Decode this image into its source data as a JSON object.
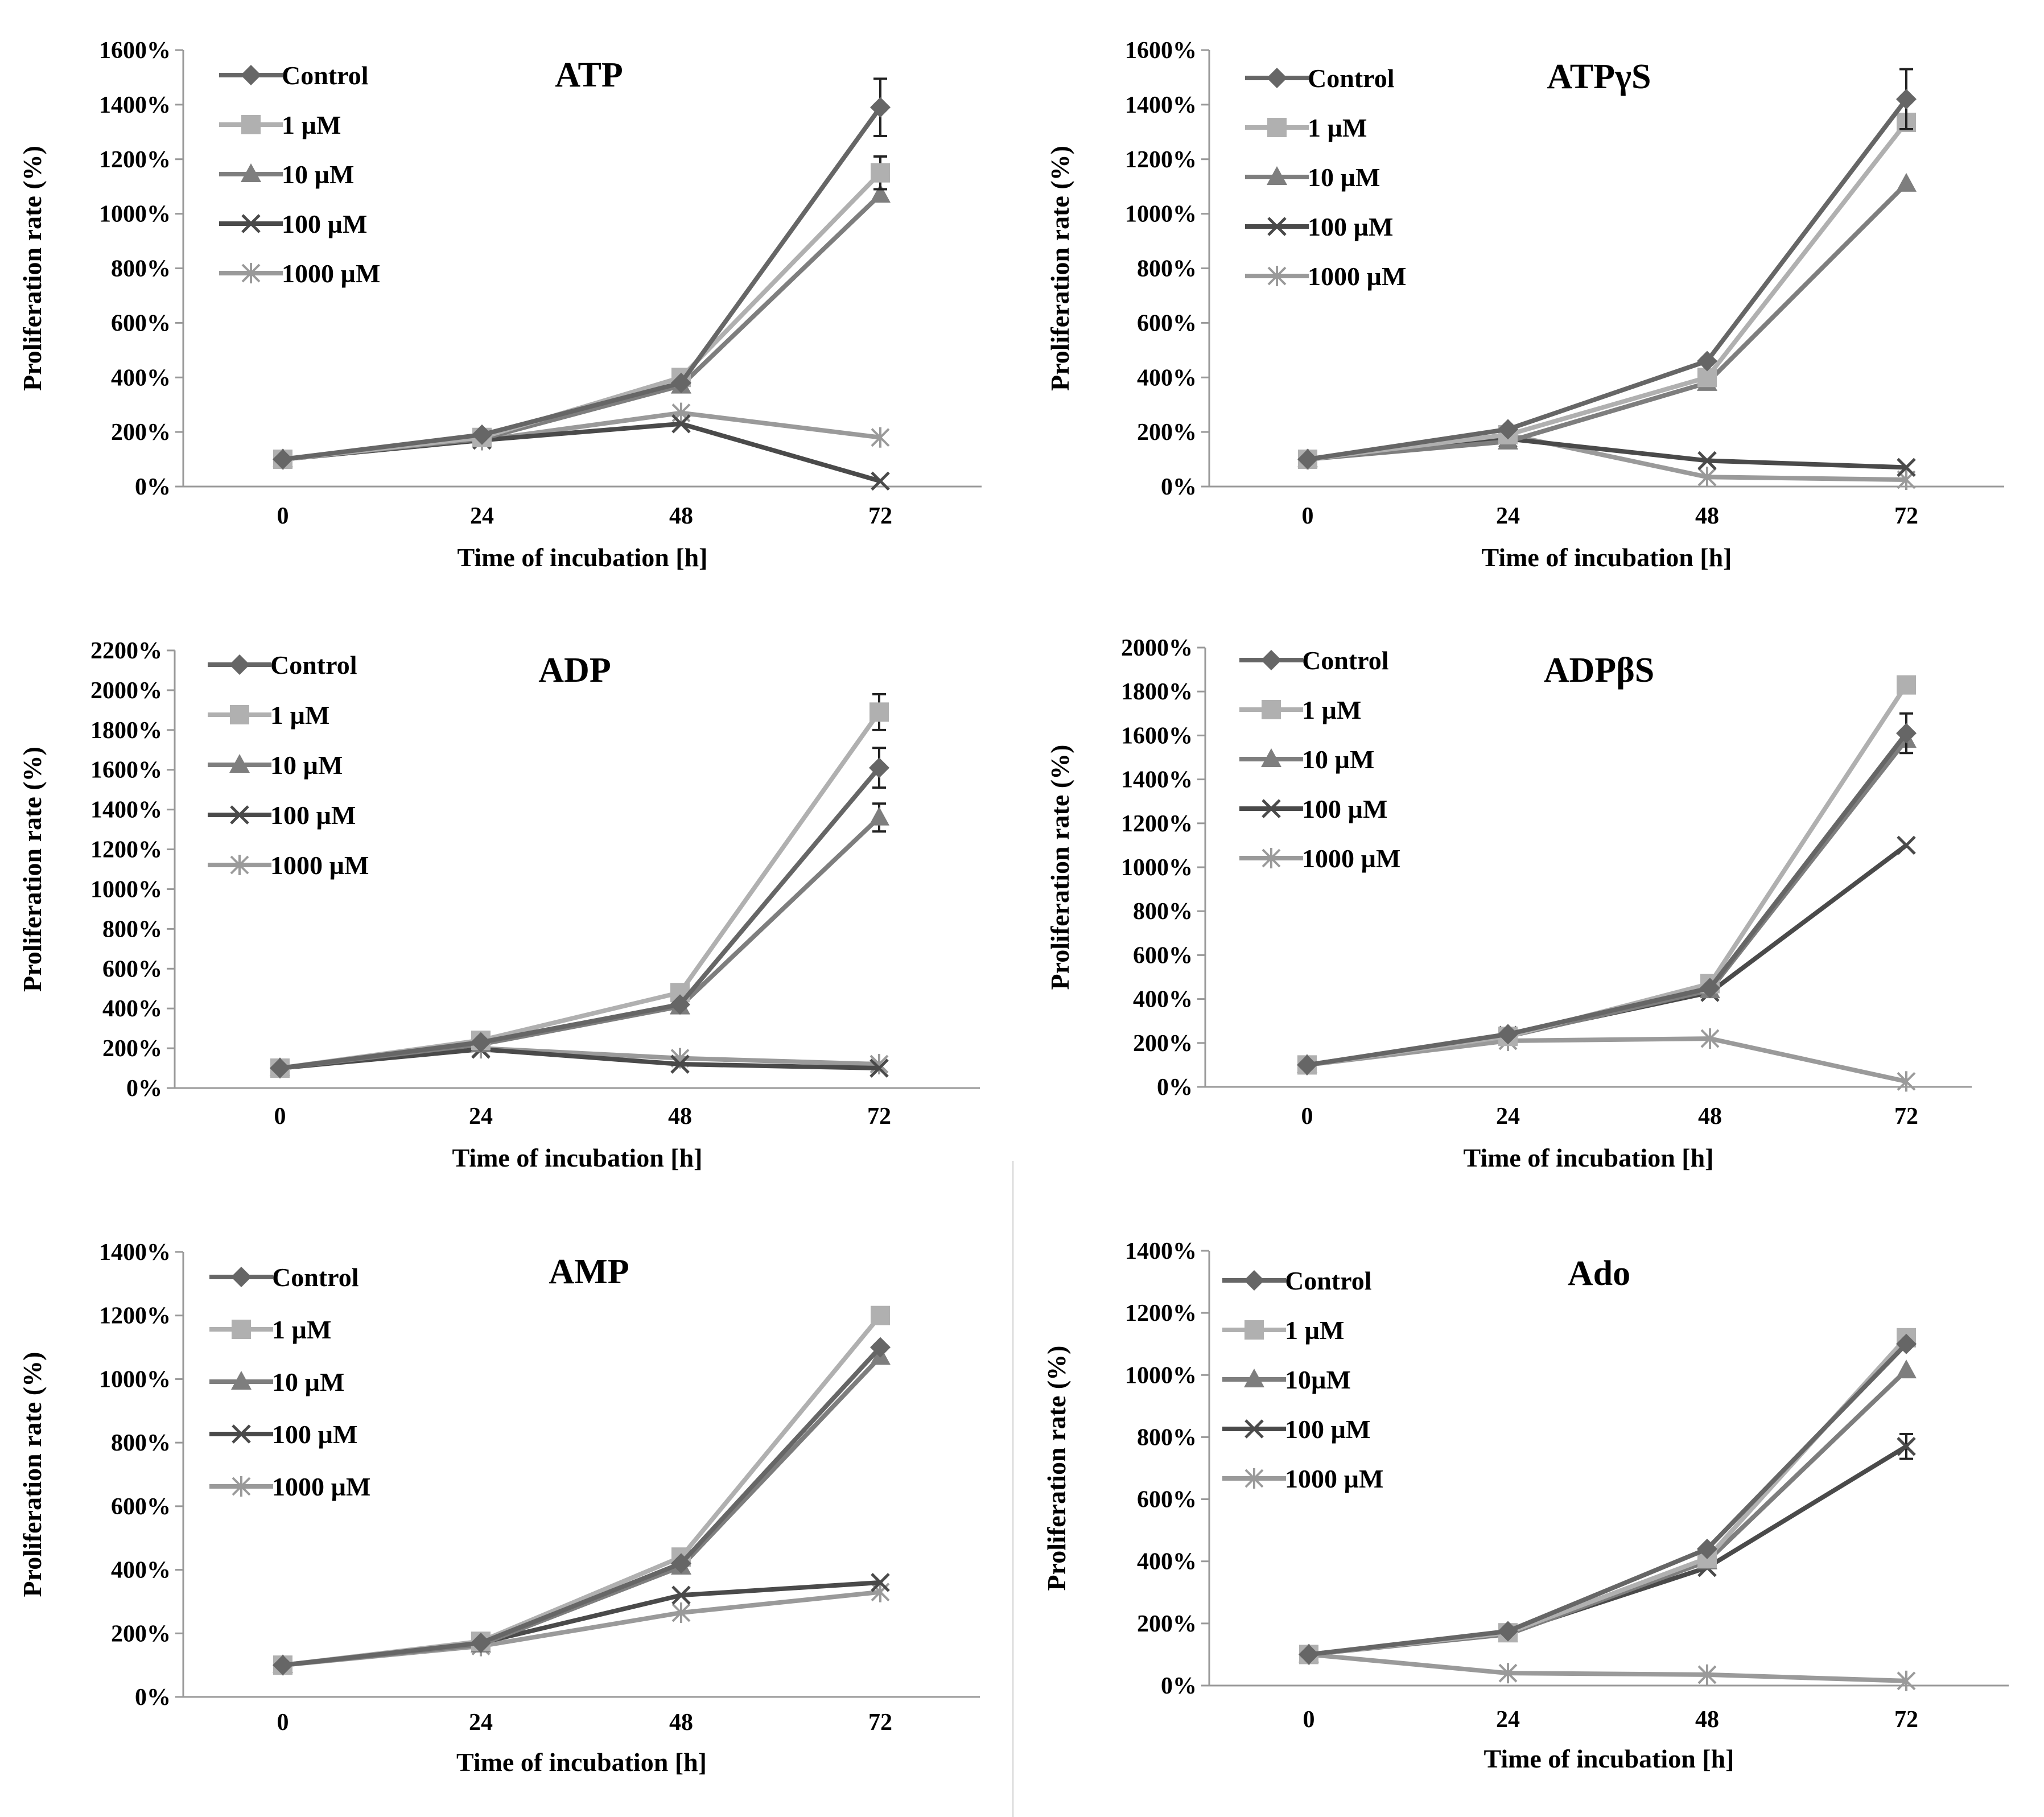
{
  "chart_data": [
    {
      "type": "line",
      "title": "ATP",
      "xlabel": "Time of incubation [h]",
      "ylabel": "Proliferation rate (%)",
      "categories": [
        "0",
        "24",
        "48",
        "72"
      ],
      "ylim": [
        0,
        1600
      ],
      "yticks": [
        0,
        200,
        400,
        600,
        800,
        1000,
        1200,
        1400,
        1600
      ],
      "ytick_labels": [
        "0%",
        "200%",
        "400%",
        "600%",
        "800%",
        "1000%",
        "1200%",
        "1400%",
        "1600%"
      ],
      "legend_position": "top-left",
      "series": [
        {
          "name": "Control",
          "values": [
            100,
            190,
            380,
            1390
          ],
          "errors": [
            0,
            0,
            0,
            105
          ]
        },
        {
          "name": "1 µM",
          "values": [
            100,
            180,
            400,
            1150
          ],
          "errors": [
            0,
            0,
            0,
            60
          ]
        },
        {
          "name": "10 µM",
          "values": [
            100,
            175,
            370,
            1070
          ],
          "errors": [
            0,
            0,
            0,
            0
          ]
        },
        {
          "name": "100 µM",
          "values": [
            100,
            170,
            230,
            20
          ],
          "errors": [
            0,
            0,
            0,
            0
          ]
        },
        {
          "name": "1000 µM",
          "values": [
            100,
            170,
            270,
            180
          ],
          "errors": [
            0,
            0,
            0,
            0
          ]
        }
      ]
    },
    {
      "type": "line",
      "title": "ATPγS",
      "xlabel": "Time of  incubation [h]",
      "ylabel": "Proliferation rate (%)",
      "categories": [
        "0",
        "24",
        "48",
        "72"
      ],
      "ylim": [
        0,
        1600
      ],
      "yticks": [
        0,
        200,
        400,
        600,
        800,
        1000,
        1200,
        1400,
        1600
      ],
      "ytick_labels": [
        "0%",
        "200%",
        "400%",
        "600%",
        "800%",
        "1000%",
        "1200%",
        "1400%",
        "1600%"
      ],
      "legend_position": "top-left",
      "series": [
        {
          "name": "Control",
          "values": [
            100,
            210,
            460,
            1420
          ],
          "errors": [
            0,
            0,
            0,
            110
          ]
        },
        {
          "name": "1 µM",
          "values": [
            100,
            190,
            400,
            1335
          ],
          "errors": [
            0,
            0,
            0,
            0
          ]
        },
        {
          "name": "10 µM",
          "values": [
            100,
            165,
            380,
            1110
          ],
          "errors": [
            0,
            0,
            0,
            0
          ]
        },
        {
          "name": "100 µM",
          "values": [
            100,
            175,
            95,
            70
          ],
          "errors": [
            0,
            0,
            0,
            0
          ]
        },
        {
          "name": "1000 µM",
          "values": [
            100,
            190,
            35,
            25
          ],
          "errors": [
            0,
            0,
            0,
            0
          ]
        }
      ]
    },
    {
      "type": "line",
      "title": "ADP",
      "xlabel": "Time of incubation [h]",
      "ylabel": "Proliferation rate (%)",
      "categories": [
        "0",
        "24",
        "48",
        "72"
      ],
      "ylim": [
        0,
        2200
      ],
      "yticks": [
        0,
        200,
        400,
        600,
        800,
        1000,
        1200,
        1400,
        1600,
        1800,
        2000,
        2200
      ],
      "ytick_labels": [
        "0%",
        "200%",
        "400%",
        "600%",
        "800%",
        "1000%",
        "1200%",
        "1400%",
        "1600%",
        "1800%",
        "2000%",
        "2200%"
      ],
      "legend_position": "top-left",
      "series": [
        {
          "name": "Control",
          "values": [
            100,
            230,
            420,
            1610
          ],
          "errors": [
            0,
            0,
            0,
            100
          ]
        },
        {
          "name": "1 µM",
          "values": [
            100,
            240,
            480,
            1890
          ],
          "errors": [
            0,
            0,
            0,
            90
          ]
        },
        {
          "name": "10 µM",
          "values": [
            100,
            220,
            410,
            1360
          ],
          "errors": [
            0,
            0,
            0,
            70
          ]
        },
        {
          "name": "100 µM",
          "values": [
            100,
            195,
            120,
            100
          ],
          "errors": [
            0,
            0,
            0,
            0
          ]
        },
        {
          "name": "1000 µM",
          "values": [
            100,
            200,
            150,
            120
          ],
          "errors": [
            0,
            0,
            0,
            0
          ]
        }
      ]
    },
    {
      "type": "line",
      "title": "ADPβS",
      "xlabel": "Time of incubation [h]",
      "ylabel": "Proliferation rate (%)",
      "categories": [
        "0",
        "24",
        "48",
        "72"
      ],
      "ylim": [
        0,
        2000
      ],
      "yticks": [
        0,
        200,
        400,
        600,
        800,
        1000,
        1200,
        1400,
        1600,
        1800,
        2000
      ],
      "ytick_labels": [
        "0%",
        "200%",
        "400%",
        "600%",
        "800%",
        "1000%",
        "1200%",
        "1400%",
        "1600%",
        "1800%",
        "2000%"
      ],
      "legend_position": "top-left",
      "series": [
        {
          "name": "Control",
          "values": [
            100,
            240,
            450,
            1610
          ],
          "errors": [
            0,
            0,
            0,
            90
          ]
        },
        {
          "name": "1 µM",
          "values": [
            100,
            230,
            470,
            1830
          ],
          "errors": [
            0,
            0,
            0,
            0
          ]
        },
        {
          "name": "10 µM",
          "values": [
            100,
            230,
            440,
            1580
          ],
          "errors": [
            0,
            0,
            0,
            0
          ]
        },
        {
          "name": "100 µM",
          "values": [
            100,
            235,
            430,
            1100
          ],
          "errors": [
            0,
            0,
            0,
            0
          ]
        },
        {
          "name": "1000 µM",
          "values": [
            100,
            210,
            220,
            25
          ],
          "errors": [
            0,
            0,
            0,
            0
          ]
        }
      ]
    },
    {
      "type": "line",
      "title": "AMP",
      "xlabel": "Time of incubation [h]",
      "ylabel": "Proliferation rate (%)",
      "categories": [
        "0",
        "24",
        "48",
        "72"
      ],
      "ylim": [
        0,
        1400
      ],
      "yticks": [
        0,
        200,
        400,
        600,
        800,
        1000,
        1200,
        1400
      ],
      "ytick_labels": [
        "0%",
        "200%",
        "400%",
        "600%",
        "800%",
        "1000%",
        "1200%",
        "1400%"
      ],
      "legend_position": "top-left",
      "series": [
        {
          "name": "Control",
          "values": [
            100,
            170,
            420,
            1100
          ],
          "errors": [
            0,
            0,
            0,
            0
          ]
        },
        {
          "name": "1 µM",
          "values": [
            100,
            175,
            440,
            1200
          ],
          "errors": [
            0,
            0,
            0,
            0
          ]
        },
        {
          "name": "10 µM",
          "values": [
            100,
            165,
            410,
            1070
          ],
          "errors": [
            0,
            0,
            0,
            0
          ]
        },
        {
          "name": "100 µM",
          "values": [
            100,
            170,
            320,
            360
          ],
          "errors": [
            0,
            0,
            0,
            0
          ]
        },
        {
          "name": "1000 µM",
          "values": [
            100,
            160,
            265,
            330
          ],
          "errors": [
            0,
            0,
            0,
            0
          ]
        }
      ]
    },
    {
      "type": "line",
      "title": "Ado",
      "xlabel": "Time of incubation [h]",
      "ylabel": "Proliferation rate (%)",
      "categories": [
        "0",
        "24",
        "48",
        "72"
      ],
      "ylim": [
        0,
        1400
      ],
      "yticks": [
        0,
        200,
        400,
        600,
        800,
        1000,
        1200,
        1400
      ],
      "ytick_labels": [
        "0%",
        "200%",
        "400%",
        "600%",
        "800%",
        "1000%",
        "1200%",
        "1400%"
      ],
      "legend_position": "top-left",
      "series": [
        {
          "name": "Control",
          "values": [
            100,
            175,
            440,
            1100
          ],
          "errors": [
            0,
            0,
            0,
            0
          ]
        },
        {
          "name": "1 µM",
          "values": [
            100,
            170,
            410,
            1120
          ],
          "errors": [
            0,
            0,
            0,
            0
          ]
        },
        {
          "name": "10µM",
          "values": [
            100,
            165,
            400,
            1015
          ],
          "errors": [
            0,
            0,
            0,
            0
          ]
        },
        {
          "name": "100 µM",
          "values": [
            100,
            170,
            380,
            770
          ],
          "errors": [
            0,
            0,
            0,
            40
          ]
        },
        {
          "name": "1000 µM",
          "values": [
            100,
            40,
            35,
            15
          ],
          "errors": [
            0,
            0,
            0,
            0
          ]
        }
      ]
    }
  ],
  "style": {
    "series_colors": [
      "#666666",
      "#b0b0b0",
      "#7e7e7e",
      "#4a4a4a",
      "#9a9a9a"
    ],
    "series_markers": [
      "diamond",
      "square",
      "triangle",
      "x",
      "star"
    ],
    "axis_color": "#999999",
    "text_color": "#000000"
  }
}
